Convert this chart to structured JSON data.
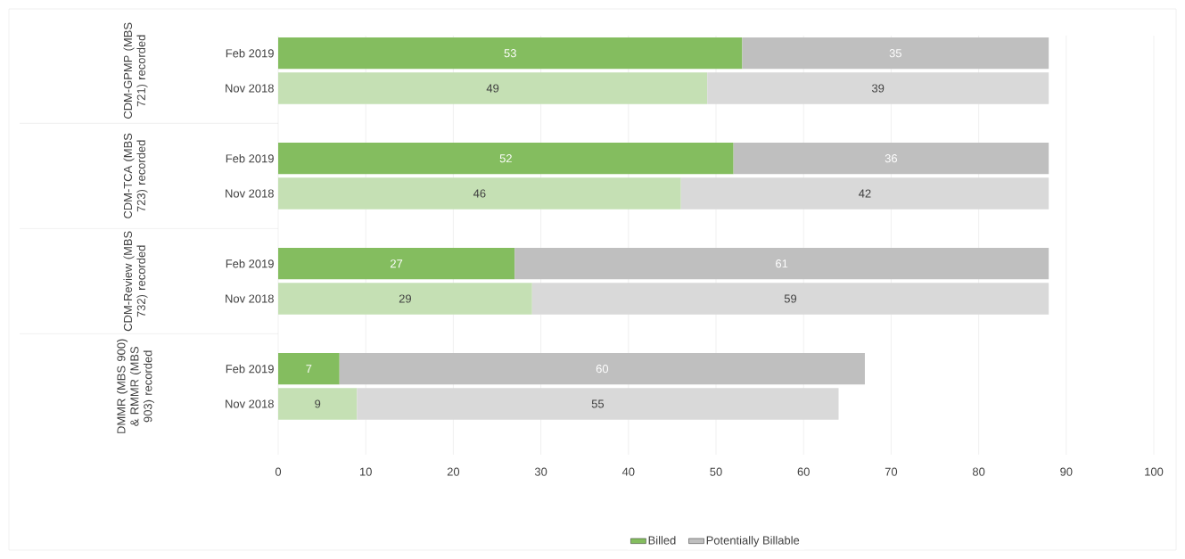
{
  "chart_data": {
    "type": "bar",
    "orientation": "horizontal",
    "stacked": true,
    "categories": [
      "Feb 2019",
      "Nov 2018",
      "Feb 2019",
      "Nov 2018",
      "Feb 2019",
      "Nov 2018",
      "Feb 2019",
      "Nov 2018"
    ],
    "series": [
      {
        "name": "Billed",
        "color": "#84bd5f",
        "colors": [
          "#84bd5f",
          "#c5e0b4",
          "#84bd5f",
          "#c5e0b4",
          "#84bd5f",
          "#c5e0b4",
          "#84bd5f",
          "#c5e0b4"
        ],
        "values": [
          53,
          49,
          52,
          46,
          27,
          29,
          7,
          9
        ]
      },
      {
        "name": "Potentially Billable",
        "color": "#bfbfbf",
        "colors": [
          "#bfbfbf",
          "#d9d9d9",
          "#bfbfbf",
          "#d9d9d9",
          "#bfbfbf",
          "#d9d9d9",
          "#bfbfbf",
          "#d9d9d9"
        ],
        "values": [
          35,
          39,
          36,
          42,
          61,
          59,
          60,
          55
        ]
      }
    ],
    "annotations": [
      "CDM-GPMP (MBS 721) recorded",
      "CDM-TCA (MBS 723) recorded",
      "CDM-Review (MBS 732) recorded",
      "DMMR (MBS 900) & RMMR (MBS 903) recorded"
    ],
    "xlim": [
      0,
      100
    ],
    "xticks": [
      0,
      10,
      20,
      30,
      40,
      50,
      60,
      70,
      80,
      90,
      100
    ],
    "grid": "x",
    "legend": "bottom",
    "data_labels": true
  }
}
